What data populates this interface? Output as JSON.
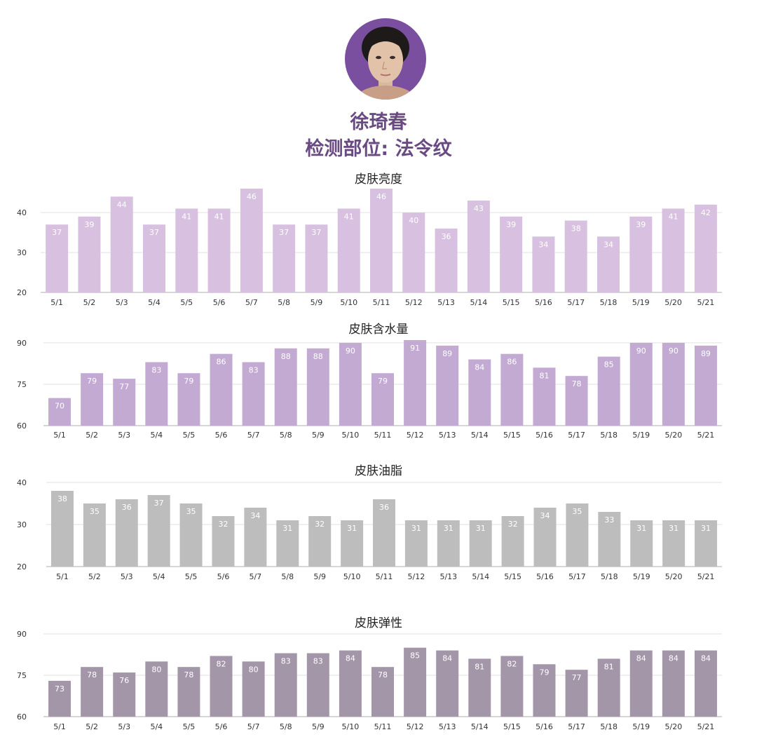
{
  "header": {
    "name": "徐琦春",
    "subtitle": "检测部位: 法令纹"
  },
  "colors": {
    "title_text": "#6a4a82",
    "avatar_bg": "#7a4fa0"
  },
  "chart_data": [
    {
      "type": "bar",
      "title": "皮肤亮度",
      "categories": [
        "5/1",
        "5/2",
        "5/3",
        "5/4",
        "5/5",
        "5/6",
        "5/7",
        "5/8",
        "5/9",
        "5/10",
        "5/11",
        "5/12",
        "5/13",
        "5/14",
        "5/15",
        "5/16",
        "5/17",
        "5/18",
        "5/19",
        "5/20",
        "5/21"
      ],
      "values": [
        37,
        39,
        44,
        37,
        41,
        41,
        46,
        37,
        37,
        41,
        46,
        40,
        36,
        43,
        39,
        34,
        38,
        34,
        39,
        41,
        42
      ],
      "yticks": [
        20,
        30,
        40
      ],
      "ylim": [
        20,
        46
      ],
      "grid": true,
      "bar_color": "#d8c1e0"
    },
    {
      "type": "bar",
      "title": "皮肤含水量",
      "categories": [
        "5/1",
        "5/2",
        "5/3",
        "5/4",
        "5/5",
        "5/6",
        "5/7",
        "5/8",
        "5/9",
        "5/10",
        "5/11",
        "5/12",
        "5/13",
        "5/14",
        "5/15",
        "5/16",
        "5/17",
        "5/18",
        "5/19",
        "5/20",
        "5/21"
      ],
      "values": [
        70,
        79,
        77,
        83,
        79,
        86,
        83,
        88,
        88,
        90,
        79,
        91,
        89,
        84,
        86,
        81,
        78,
        85,
        90,
        90,
        89
      ],
      "yticks": [
        60,
        75,
        90
      ],
      "ylim": [
        60,
        91
      ],
      "grid": true,
      "bar_color": "#c2aad3"
    },
    {
      "type": "bar",
      "title": "皮肤油脂",
      "categories": [
        "5/1",
        "5/2",
        "5/3",
        "5/4",
        "5/5",
        "5/6",
        "5/7",
        "5/8",
        "5/9",
        "5/10",
        "5/11",
        "5/12",
        "5/13",
        "5/14",
        "5/15",
        "5/16",
        "5/17",
        "5/18",
        "5/19",
        "5/20",
        "5/21"
      ],
      "values": [
        38,
        35,
        36,
        37,
        35,
        32,
        34,
        31,
        32,
        31,
        36,
        31,
        31,
        31,
        32,
        34,
        35,
        33,
        31,
        31,
        31
      ],
      "yticks": [
        20,
        30,
        40
      ],
      "ylim": [
        20,
        40
      ],
      "grid": true,
      "bar_color": "#bdbdbd"
    },
    {
      "type": "bar",
      "title": "皮肤弹性",
      "categories": [
        "5/1",
        "5/2",
        "5/3",
        "5/4",
        "5/5",
        "5/6",
        "5/7",
        "5/8",
        "5/9",
        "5/10",
        "5/11",
        "5/12",
        "5/13",
        "5/14",
        "5/15",
        "5/16",
        "5/17",
        "5/18",
        "5/19",
        "5/20",
        "5/21"
      ],
      "values": [
        73,
        78,
        76,
        80,
        78,
        82,
        80,
        83,
        83,
        84,
        78,
        85,
        84,
        81,
        82,
        79,
        77,
        81,
        84,
        84,
        84
      ],
      "yticks": [
        60,
        75,
        90
      ],
      "ylim": [
        60,
        90
      ],
      "grid": true,
      "bar_color": "#a496a9"
    }
  ]
}
